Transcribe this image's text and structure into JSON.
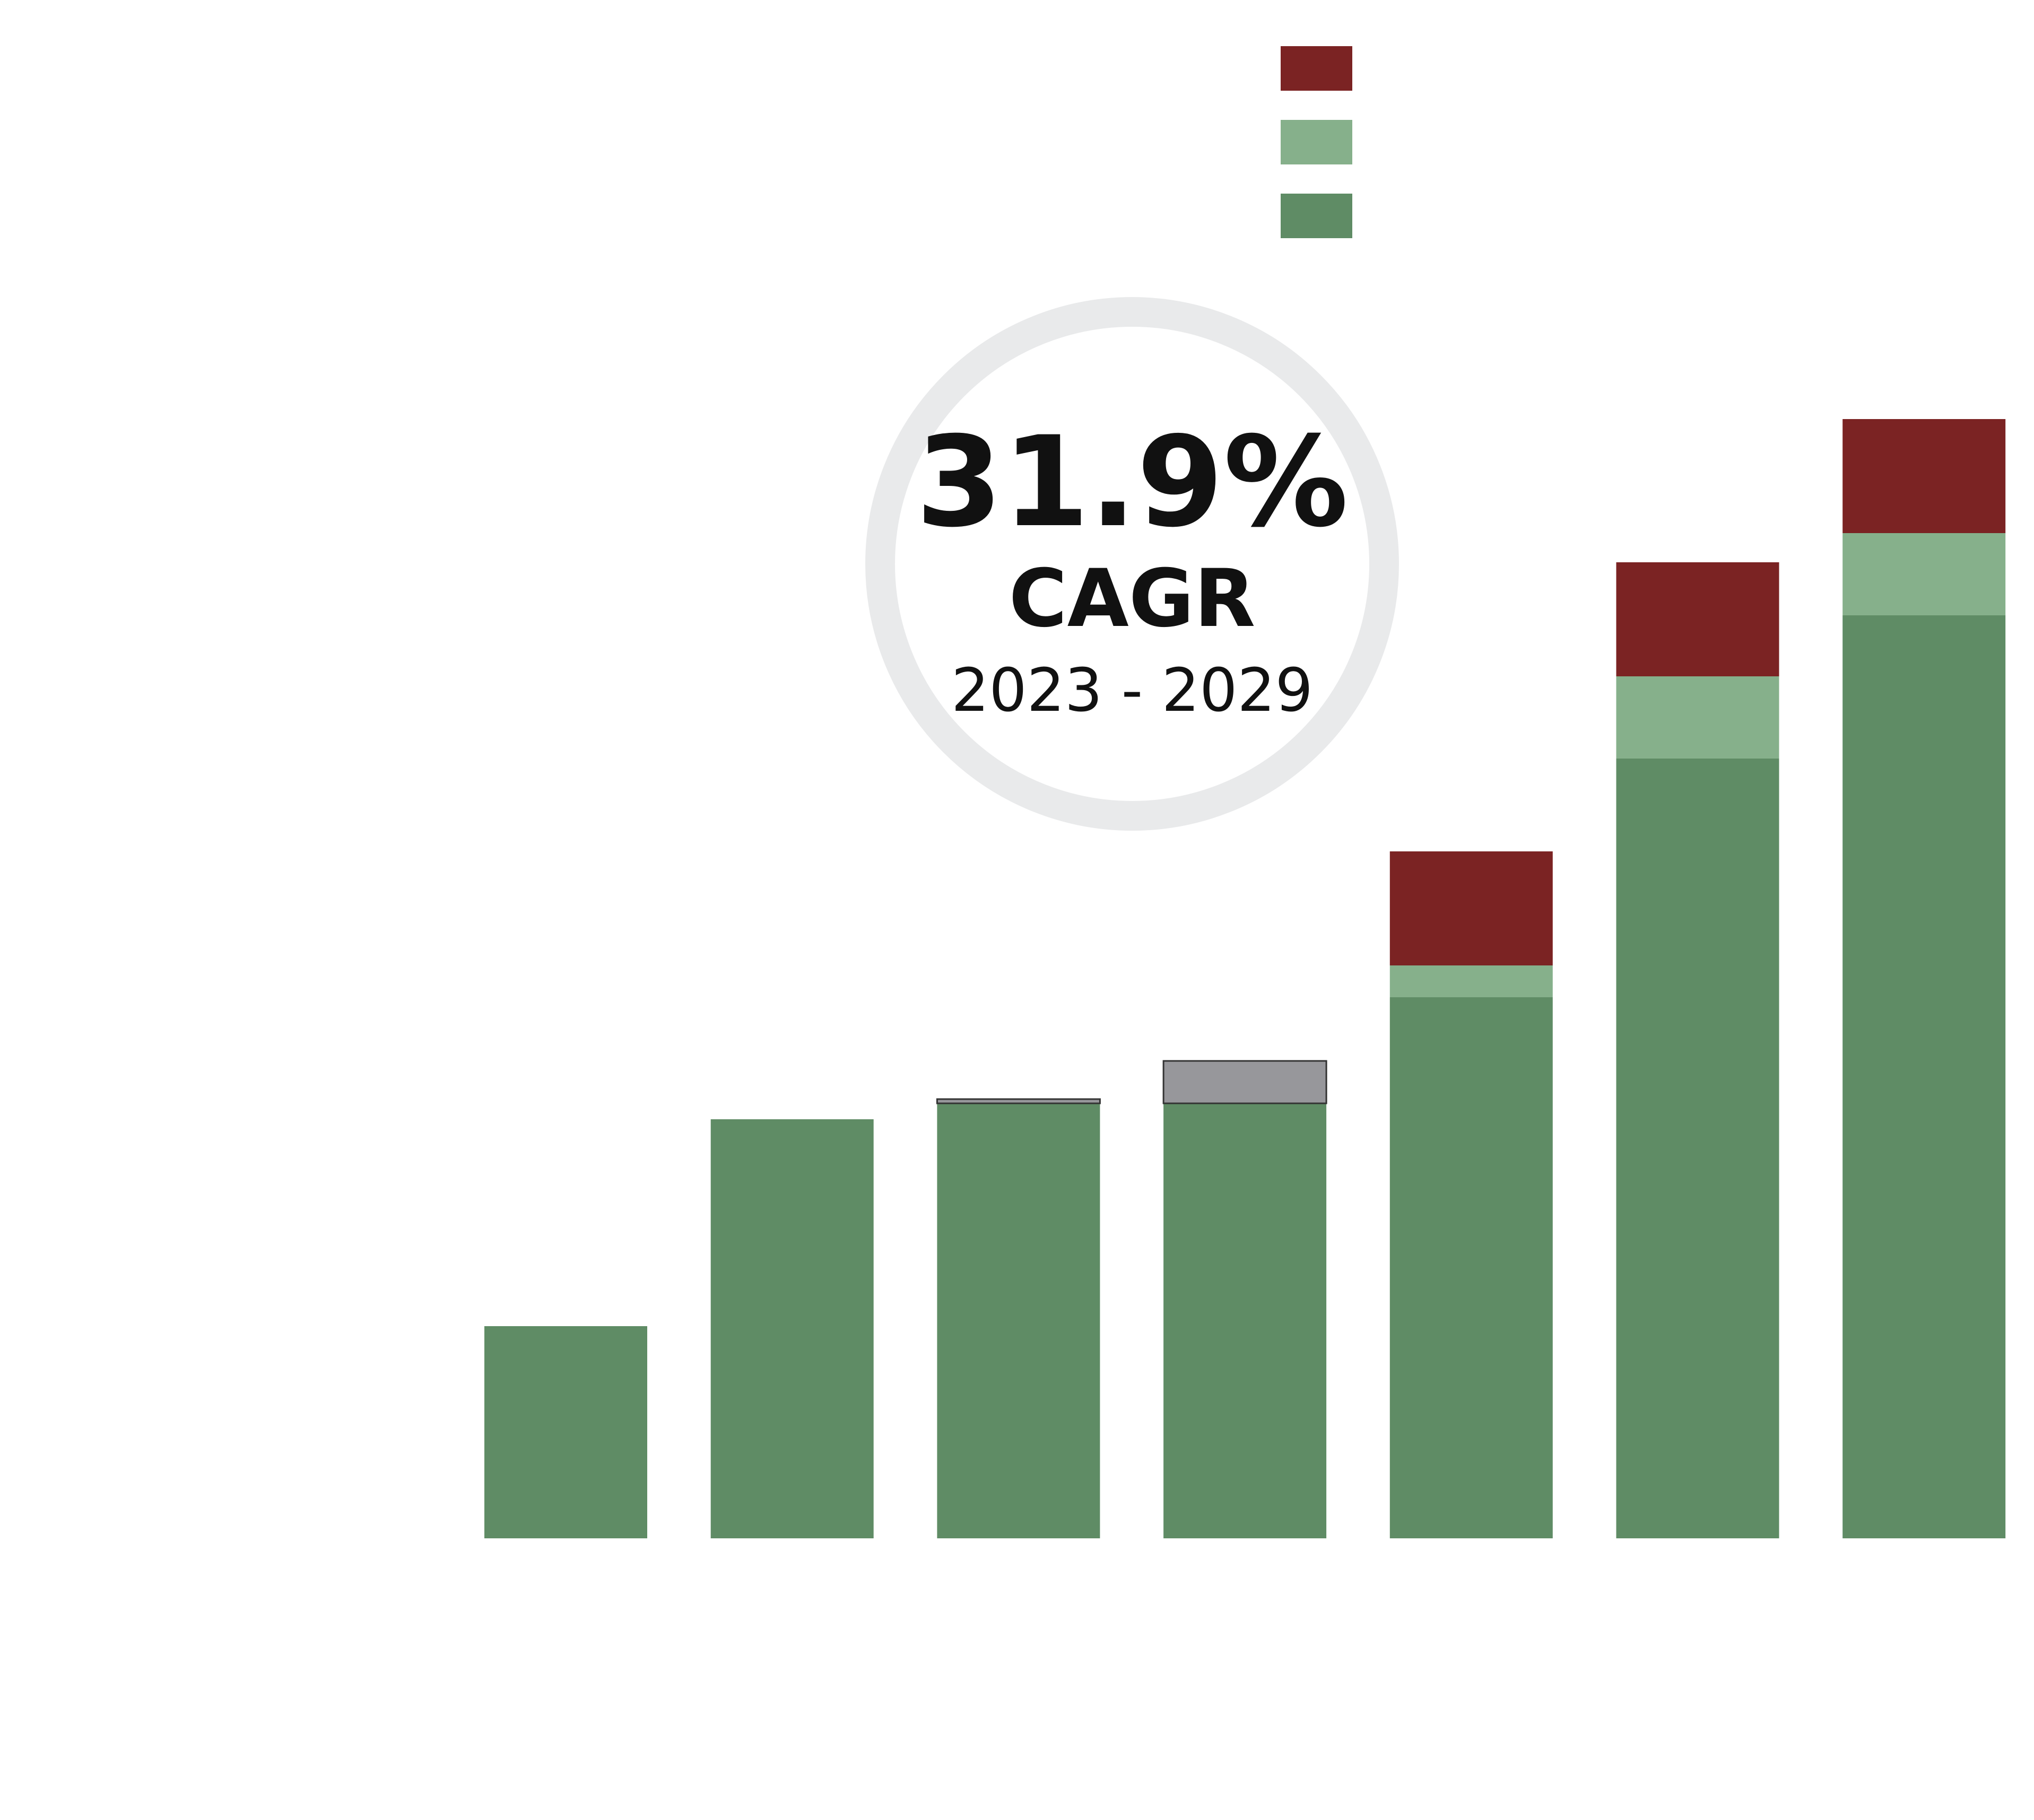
{
  "chart_data": {
    "type": "bar",
    "stacked": true,
    "categories": [
      "",
      "",
      "",
      "",
      "",
      "",
      ""
    ],
    "ylim": [
      0,
      2200
    ],
    "series": [
      {
        "key": "base",
        "values": [
          400,
          790,
          820,
          820,
          1020,
          1470,
          1740
        ]
      },
      {
        "key": "light",
        "values": [
          0,
          0,
          0,
          0,
          60,
          155,
          155
        ]
      },
      {
        "key": "dark",
        "values": [
          0,
          0,
          0,
          0,
          215,
          215,
          215
        ]
      },
      {
        "key": "grey",
        "values": [
          0,
          0,
          8,
          80,
          0,
          0,
          0
        ]
      }
    ],
    "legend": {
      "position": "top-right"
    },
    "grid": false
  },
  "colors": {
    "base": "#5f8c65",
    "light": "#86b08b",
    "dark": "#7b2323",
    "grey": "#97979b",
    "grey_outline": "#333333",
    "badge_ring": "#e9eaeb"
  },
  "badge": {
    "value": "31.9%",
    "label": "CAGR",
    "range": "2023 - 2029"
  }
}
